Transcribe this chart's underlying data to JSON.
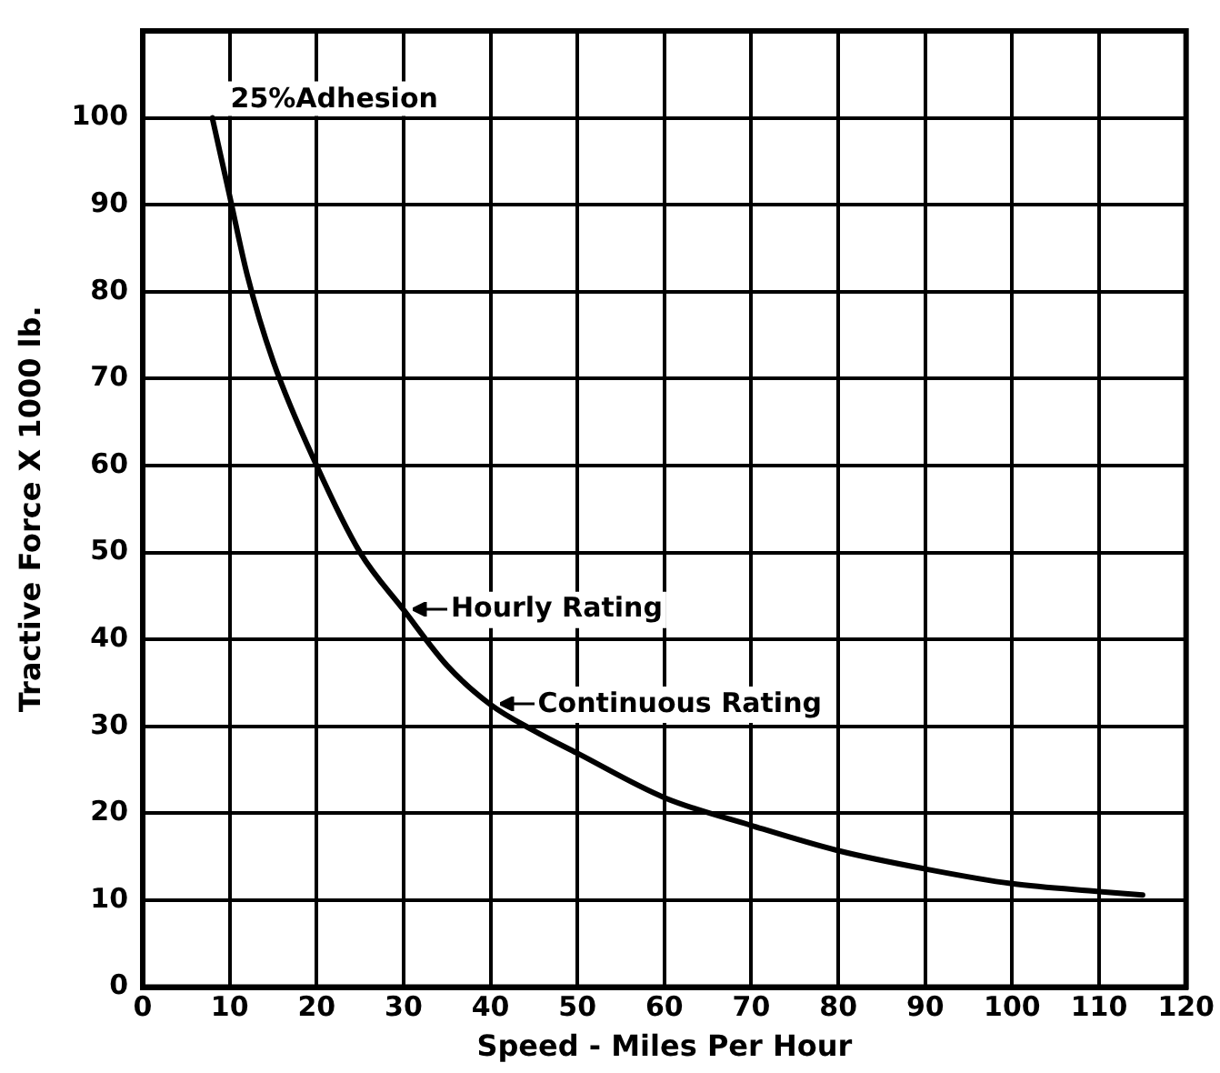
{
  "chart_data": {
    "type": "line",
    "xlabel": "Speed - Miles Per Hour",
    "ylabel": "Tractive Force X 1000 lb.",
    "x": [
      8,
      10,
      12,
      15,
      20,
      25,
      30,
      35,
      40,
      45,
      50,
      60,
      70,
      80,
      90,
      100,
      110,
      115
    ],
    "series": [
      {
        "color": "#000000",
        "values": [
          100,
          91,
          82,
          72,
          60,
          50,
          43.4,
          37,
          32.5,
          29.5,
          26.9,
          21.8,
          18.6,
          15.7,
          13.6,
          11.9,
          11,
          10.6
        ]
      }
    ],
    "xlim": [
      0,
      120
    ],
    "xticks": [
      0,
      10,
      20,
      30,
      40,
      50,
      60,
      70,
      80,
      90,
      100,
      110,
      120
    ],
    "ylim": [
      0,
      110
    ],
    "yticks": [
      0,
      10,
      20,
      30,
      40,
      50,
      60,
      70,
      80,
      90,
      100
    ],
    "grid": true,
    "legend": false,
    "marker": "none",
    "line_style": "solid",
    "annotations": [
      {
        "text": "25%Adhesion",
        "x": 8,
        "y": 100
      },
      {
        "text": "Hourly Rating",
        "x": 30,
        "y": 43.4
      },
      {
        "text": "Continuous Rating",
        "x": 40,
        "y": 32.5
      }
    ]
  }
}
